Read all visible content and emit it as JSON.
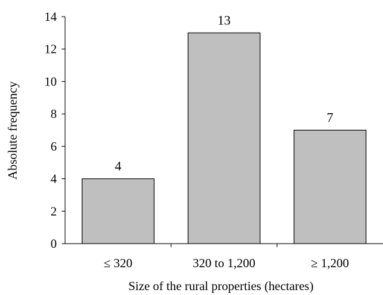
{
  "chart_data": {
    "type": "bar",
    "categories": [
      "≤ 320",
      "320 to 1,200",
      "≥ 1,200"
    ],
    "values": [
      4,
      13,
      7
    ],
    "data_labels": [
      "4",
      "13",
      "7"
    ],
    "xlabel": "Size of the rural properties (hectares)",
    "ylabel": "Absolute frequency",
    "ylim": [
      0,
      14
    ],
    "yticks": [
      "0",
      "2",
      "4",
      "6",
      "8",
      "10",
      "12",
      "14"
    ],
    "grid": false,
    "legend": "none",
    "colors": {
      "bar_fill": "#bfbfbf",
      "bar_stroke": "#000000",
      "axis": "#000000"
    }
  }
}
